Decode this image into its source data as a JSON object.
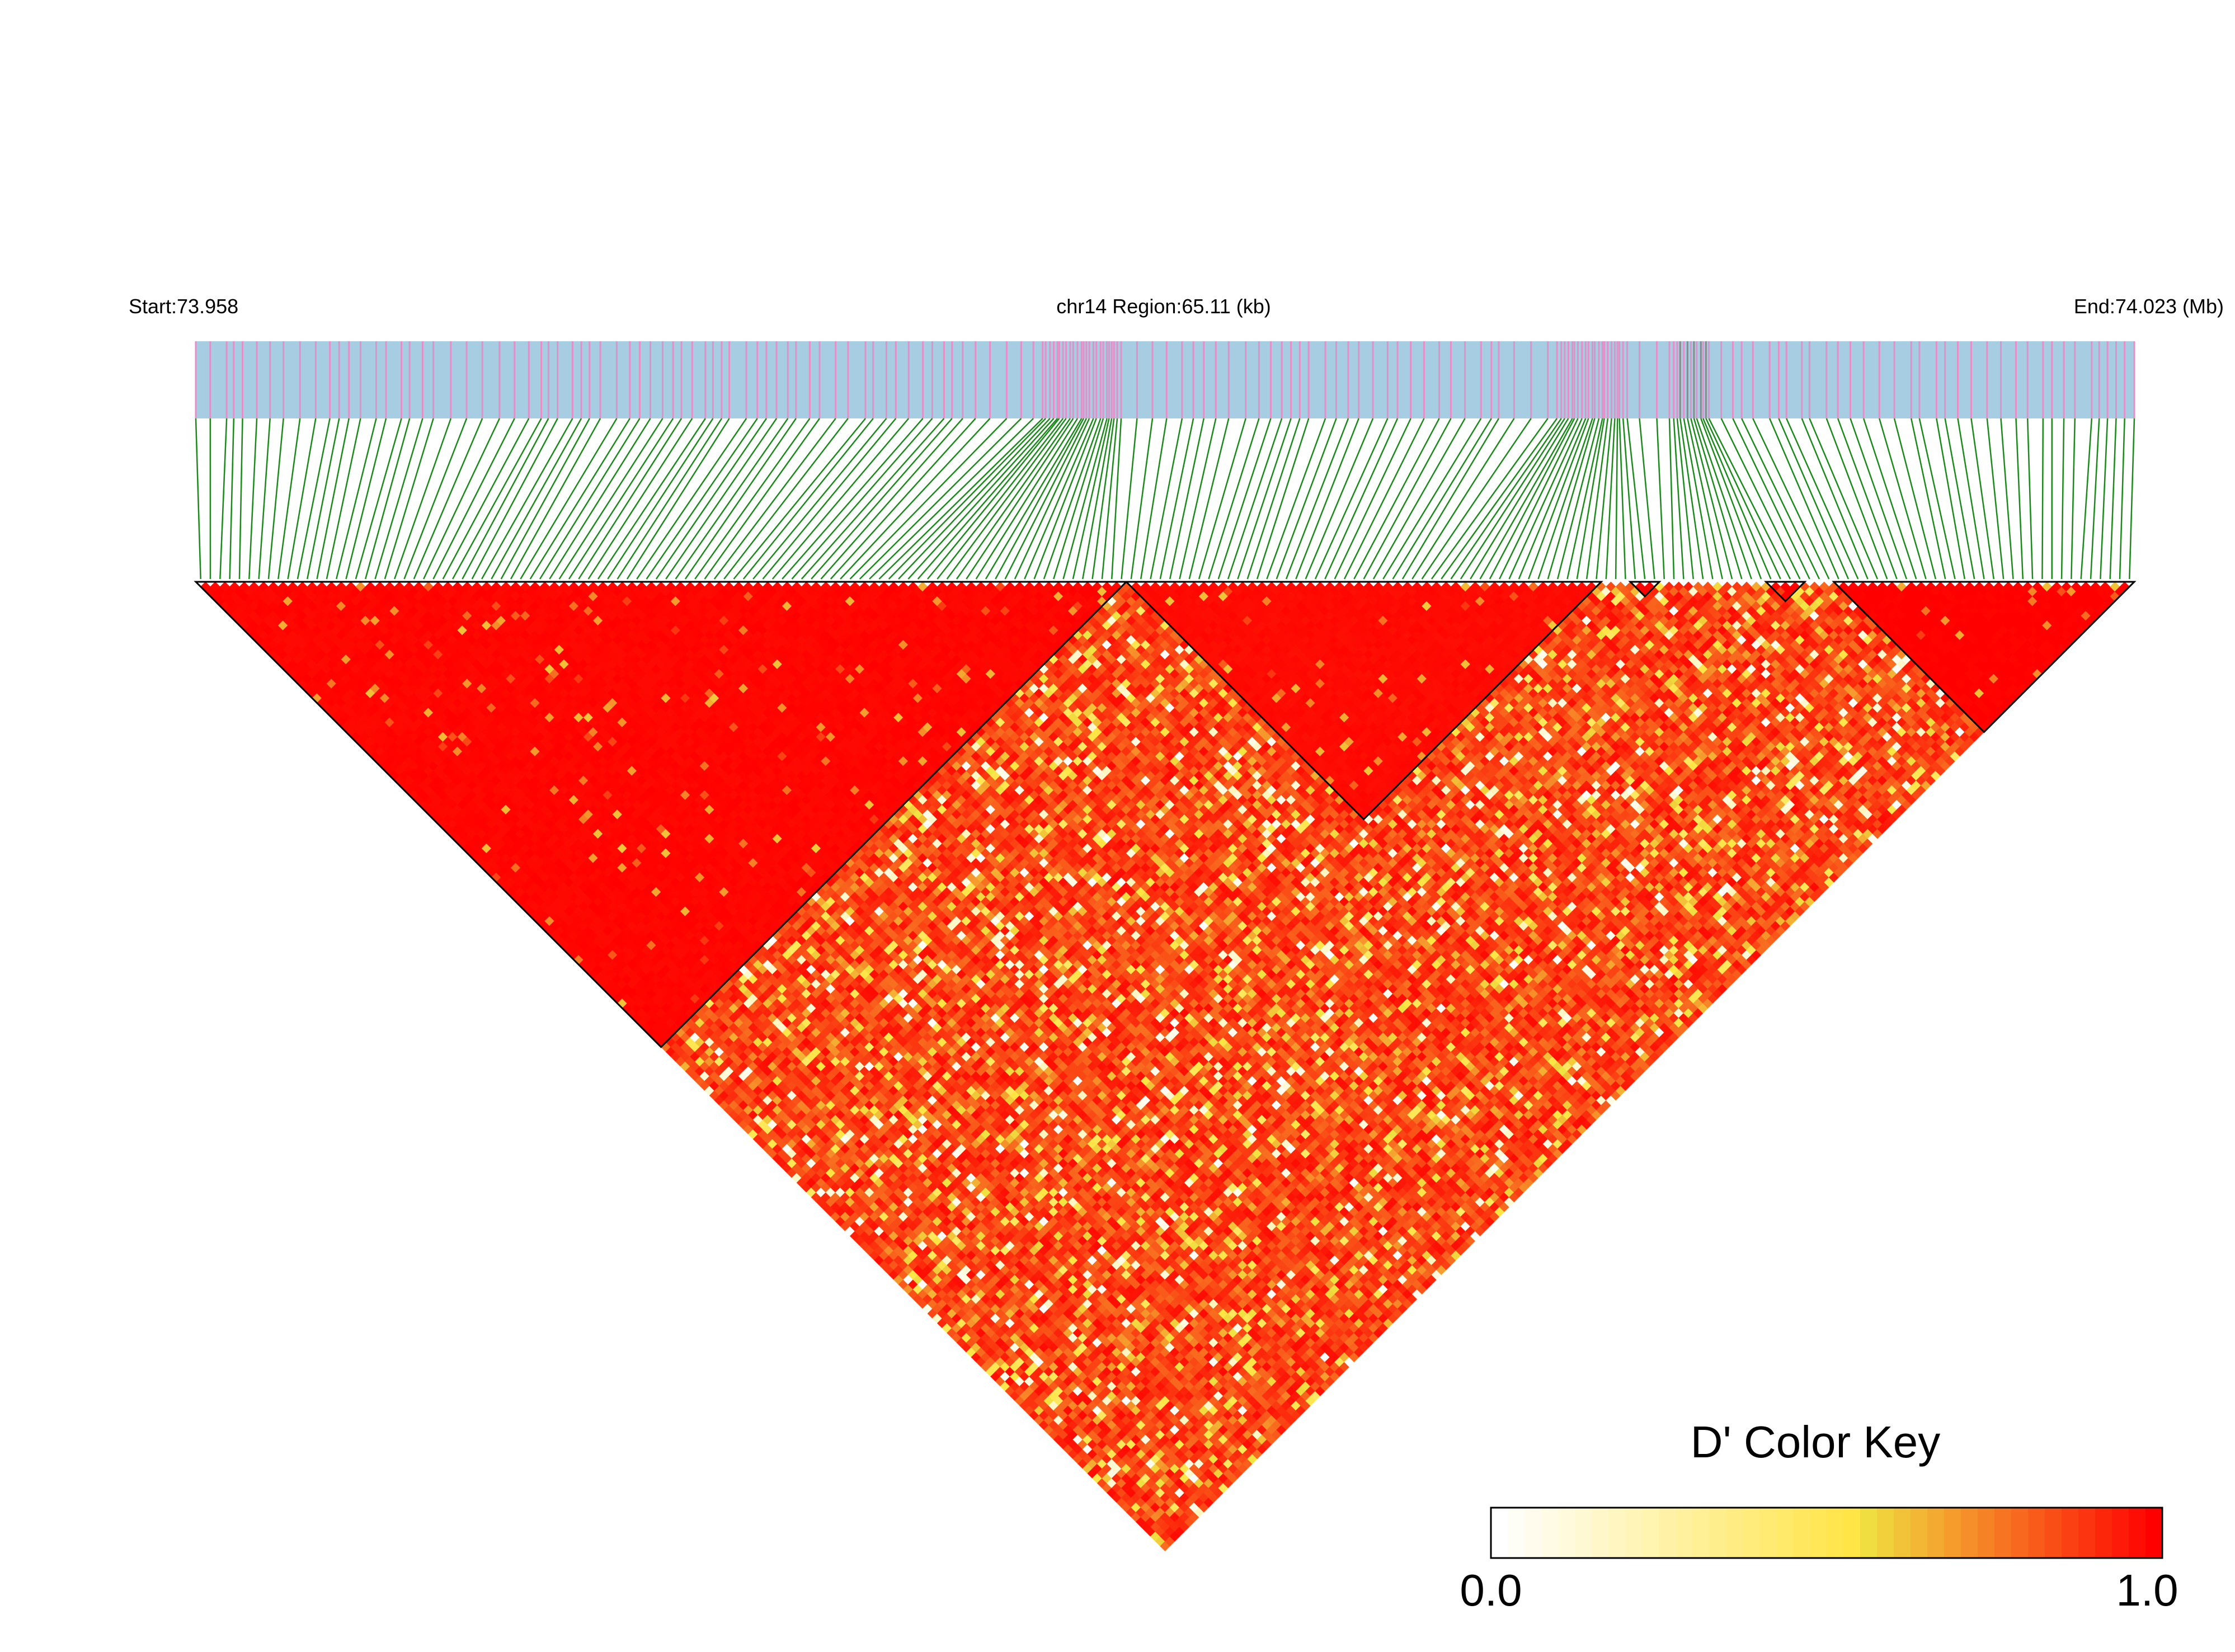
{
  "chart_data": {
    "type": "heatmap",
    "title": "",
    "region": {
      "start_label": "Start:73.958",
      "center_label": "chr14 Region:65.11 (kb)",
      "end_label": "End:74.023 (Mb)",
      "start_mb": 73.958,
      "end_mb": 74.023,
      "chromosome": "chr14",
      "length_kb": 65.11
    },
    "snp_count": 200,
    "measure": "D'",
    "value_range": [
      0.0,
      1.0
    ],
    "blocks": [
      {
        "from_snp": 0,
        "to_snp": 95,
        "mean_d_prime": 0.99
      },
      {
        "from_snp": 96,
        "to_snp": 144,
        "mean_d_prime": 0.98
      },
      {
        "from_snp": 148,
        "to_snp": 150,
        "mean_d_prime": 1.0
      },
      {
        "from_snp": 162,
        "to_snp": 165,
        "mean_d_prime": 1.0
      },
      {
        "from_snp": 169,
        "to_snp": 199,
        "mean_d_prime": 1.0
      }
    ],
    "off_block_mean_d_prime": 0.84,
    "legend": {
      "title": "D' Color Key",
      "min_label": "0.0",
      "max_label": "1.0",
      "placement": "bottom-right"
    },
    "colors": {
      "track_background": "#a6cde2",
      "snp_tick": "#e58fc8",
      "dense_tick": "#8a8a8a",
      "connector": "#1a8a1a",
      "high": "#ff0000",
      "mid": "#f0e442",
      "low": "#ffffff",
      "block_border": "#000000"
    }
  }
}
